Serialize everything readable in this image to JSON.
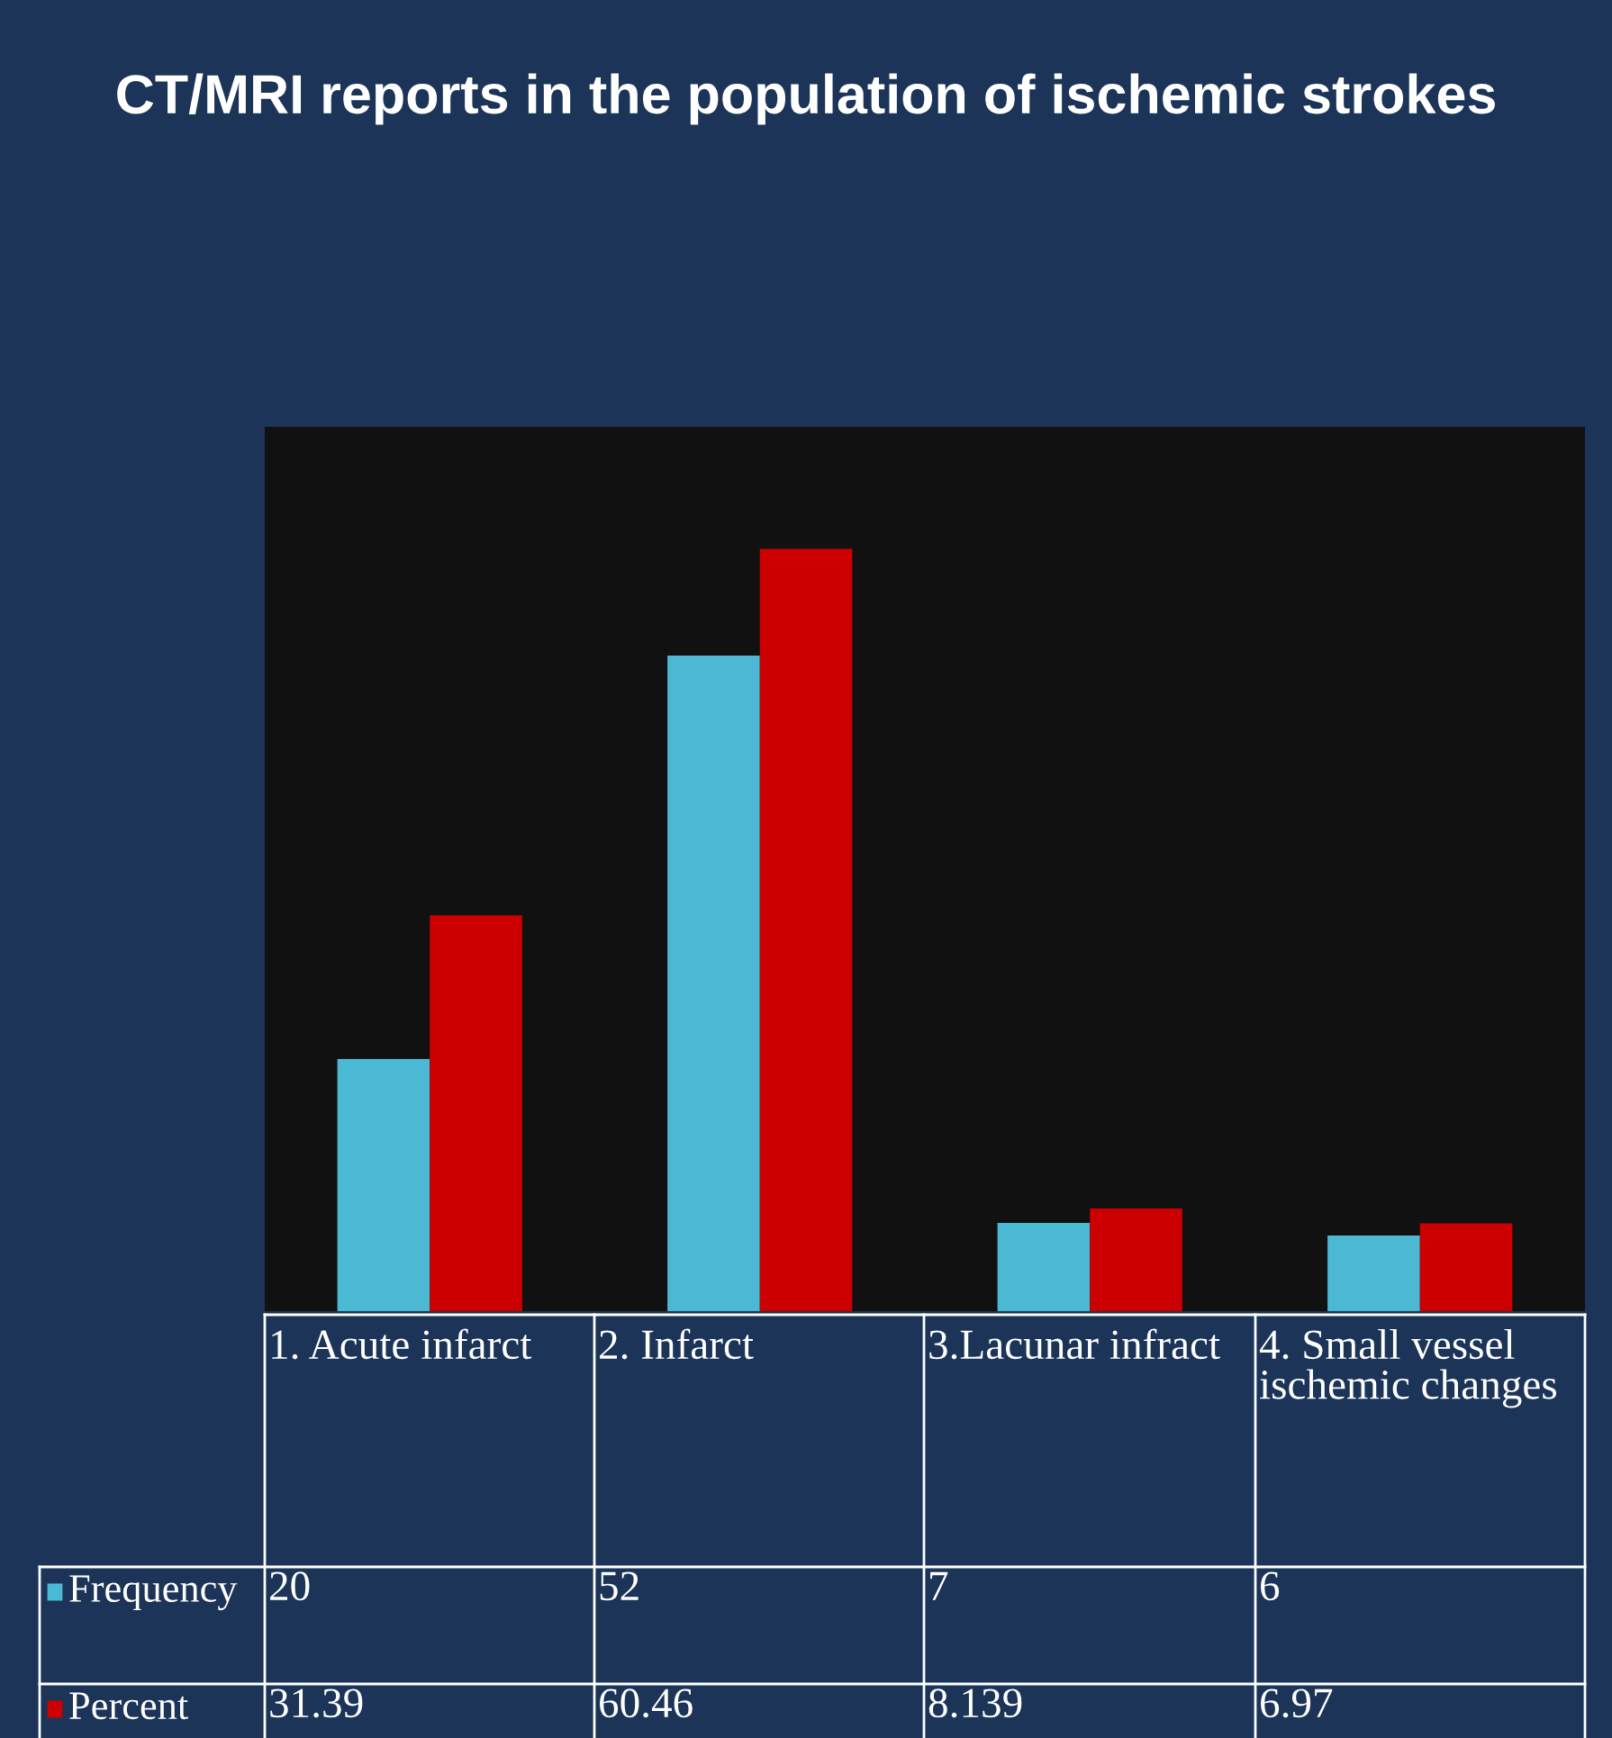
{
  "chart_data": {
    "type": "bar",
    "title": "CT/MRI reports in the population of ischemic strokes",
    "categories": [
      "1. Acute infarct",
      "2. Infarct",
      "3.Lacunar infract",
      "4. Small vessel ischemic changes"
    ],
    "series": [
      {
        "name": "Frequency",
        "color": "#4bb8d4",
        "values": [
          20,
          52,
          7,
          6
        ]
      },
      {
        "name": "Percent",
        "color": "#cc0000",
        "values": [
          31.39,
          60.46,
          8.139,
          6.97
        ]
      }
    ],
    "data_labels": true,
    "legend": "bottom"
  }
}
